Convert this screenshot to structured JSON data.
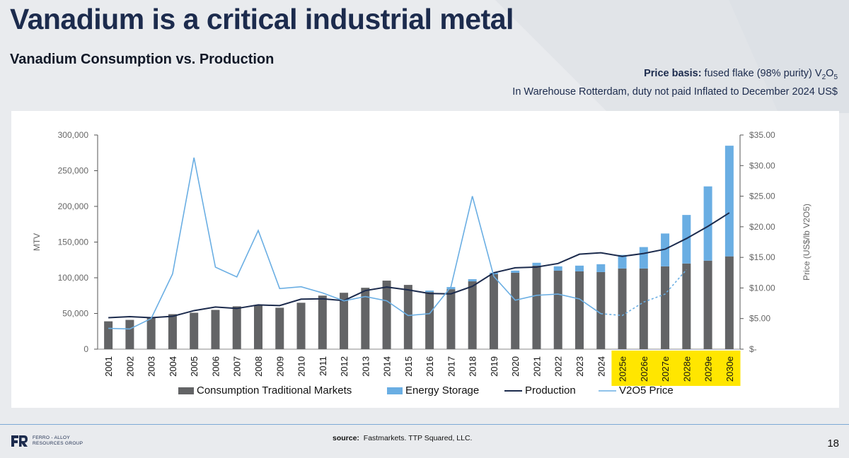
{
  "page": {
    "title": "Vanadium is a critical industrial metal",
    "subtitle": "Vanadium Consumption vs. Production",
    "price_basis_label": "Price basis:",
    "price_basis_text": " fused flake (98% purity) V",
    "price_basis_sub1": "2",
    "price_basis_o": "O",
    "price_basis_sub2": "5",
    "price_basis_line2": "In Warehouse Rotterdam, duty not paid Inflated to December 2024 US$",
    "source_label": "source:",
    "source_text": "Fastmarkets. TTP Squared, LLC.",
    "page_number": "18",
    "logo_line1": "FERRO - ALLOY",
    "logo_line2": "RESOURCES GROUP"
  },
  "chart_data": {
    "type": "bar",
    "categories": [
      "2001",
      "2002",
      "2003",
      "2004",
      "2005",
      "2006",
      "2007",
      "2008",
      "2009",
      "2010",
      "2011",
      "2012",
      "2013",
      "2014",
      "2015",
      "2016",
      "2017",
      "2018",
      "2019",
      "2020",
      "2021",
      "2022",
      "2023",
      "2024",
      "2025e",
      "2026e",
      "2027e",
      "2028e",
      "2029e",
      "2030e"
    ],
    "highlighted_categories": [
      "2025e",
      "2026e",
      "2027e",
      "2028e",
      "2029e",
      "2030e"
    ],
    "highlight_color": "#ffe600",
    "series": [
      {
        "name": "Consumption Traditional Markets",
        "kind": "bar",
        "stack": "consumption",
        "axis": "left",
        "color": "#636466",
        "values": [
          39000,
          41000,
          45000,
          49000,
          51000,
          55000,
          60000,
          61000,
          58000,
          65000,
          75000,
          79000,
          86000,
          96000,
          90000,
          80000,
          84000,
          95000,
          105000,
          107000,
          117000,
          110000,
          109000,
          108000,
          113000,
          113000,
          116000,
          120000,
          124000,
          130000
        ]
      },
      {
        "name": "Energy Storage",
        "kind": "bar",
        "stack": "consumption",
        "axis": "left",
        "color": "#6aaee3",
        "values": [
          0,
          0,
          0,
          0,
          0,
          0,
          0,
          0,
          0,
          0,
          0,
          0,
          0,
          0,
          0,
          2000,
          3000,
          3000,
          2000,
          3000,
          4000,
          6000,
          8000,
          11000,
          19000,
          30000,
          46000,
          68000,
          104000,
          155000
        ]
      },
      {
        "name": "Production",
        "kind": "line",
        "axis": "left",
        "color": "#1c2b4d",
        "values": [
          44000,
          45500,
          44000,
          46000,
          54000,
          59000,
          57000,
          62000,
          61000,
          70000,
          70500,
          68000,
          82000,
          87000,
          83000,
          78000,
          77500,
          88000,
          107000,
          114000,
          115000,
          120000,
          133000,
          135000,
          130000,
          134000,
          140000,
          155000,
          172000,
          191000
        ]
      },
      {
        "name": "V2O5 Price",
        "kind": "line",
        "axis": "right",
        "color": "#6aaee3",
        "values": [
          3.4,
          3.3,
          5.0,
          12.3,
          31.3,
          13.4,
          11.8,
          19.4,
          9.9,
          10.2,
          9.2,
          7.9,
          8.6,
          7.9,
          5.5,
          5.8,
          10.2,
          25.0,
          11.9,
          8.0,
          8.8,
          9.0,
          8.2,
          5.8,
          5.5,
          7.7,
          9.0,
          13.0,
          null,
          null
        ],
        "dashed_from": "2024"
      }
    ],
    "left_axis": {
      "label": "MTV",
      "min": 0,
      "max": 300000,
      "ticks": [
        "0",
        "50,000",
        "100,000",
        "150,000",
        "200,000",
        "250,000",
        "300,000"
      ]
    },
    "right_axis": {
      "label": "Price (US$/lb V2O5)",
      "min": 0,
      "max": 35,
      "ticks": [
        "$-",
        "$5.00",
        "$10.00",
        "$15.00",
        "$20.00",
        "$25.00",
        "$30.00",
        "$35.00"
      ]
    },
    "legend": {
      "position": "bottom",
      "entries": [
        "Consumption Traditional Markets",
        "Energy Storage",
        "Production",
        "V2O5 Price"
      ]
    },
    "grid": false
  }
}
